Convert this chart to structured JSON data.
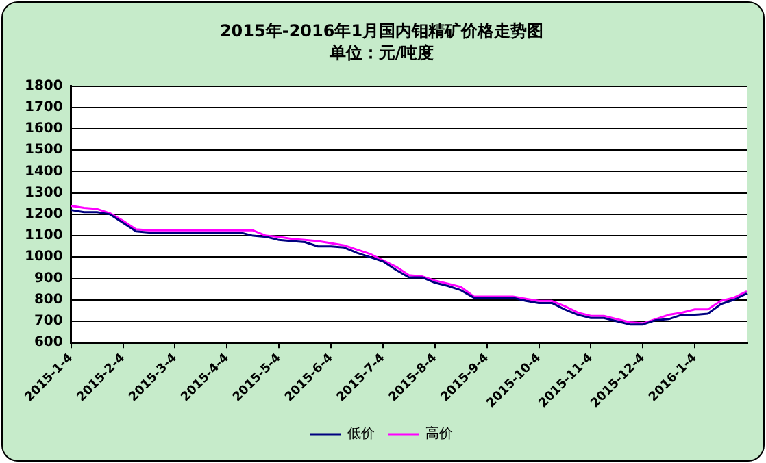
{
  "chart_data": {
    "type": "line",
    "title": "2015年-2016年1月国内钼精矿价格走势图",
    "subtitle": "单位：元/吨度",
    "categories": [
      "2015-1-4",
      null,
      null,
      null,
      "2015-2-4",
      null,
      null,
      null,
      "2015-3-4",
      null,
      null,
      null,
      "2015-4-4",
      null,
      null,
      null,
      "2015-5-4",
      null,
      null,
      null,
      "2015-6-4",
      null,
      null,
      null,
      "2015-7-4",
      null,
      null,
      null,
      "2015-8-4",
      null,
      null,
      null,
      "2015-9-4",
      null,
      null,
      null,
      "2015-10-4",
      null,
      null,
      null,
      "2015-11-4",
      null,
      null,
      null,
      "2015-12-4",
      null,
      null,
      null,
      "2016-1-4",
      null,
      null,
      null,
      null
    ],
    "series": [
      {
        "name": "低价",
        "color": "#000080",
        "values": [
          1220,
          1210,
          1210,
          1200,
          1160,
          1120,
          1115,
          1115,
          1115,
          1115,
          1115,
          1115,
          1115,
          1115,
          1100,
          1095,
          1080,
          1075,
          1070,
          1050,
          1050,
          1045,
          1020,
          1000,
          980,
          940,
          905,
          905,
          880,
          865,
          845,
          810,
          810,
          810,
          810,
          795,
          785,
          785,
          755,
          730,
          715,
          715,
          700,
          685,
          685,
          705,
          710,
          730,
          730,
          735,
          780,
          800,
          830
        ]
      },
      {
        "name": "高价",
        "color": "#ff00ff",
        "values": [
          1240,
          1230,
          1225,
          1205,
          1170,
          1130,
          1125,
          1125,
          1125,
          1125,
          1125,
          1125,
          1125,
          1125,
          1125,
          1100,
          1095,
          1085,
          1080,
          1075,
          1065,
          1055,
          1035,
          1015,
          985,
          955,
          915,
          910,
          890,
          875,
          860,
          815,
          815,
          815,
          815,
          805,
          795,
          795,
          770,
          740,
          725,
          725,
          710,
          695,
          690,
          710,
          730,
          740,
          755,
          755,
          795,
          810,
          840
        ]
      }
    ],
    "ylim": [
      600,
      1800
    ],
    "yticks": [
      600,
      700,
      800,
      900,
      1000,
      1100,
      1200,
      1300,
      1400,
      1500,
      1600,
      1700,
      1800
    ],
    "grid": "y",
    "legend": "bottom",
    "marker": "none",
    "line_style": "solid"
  }
}
